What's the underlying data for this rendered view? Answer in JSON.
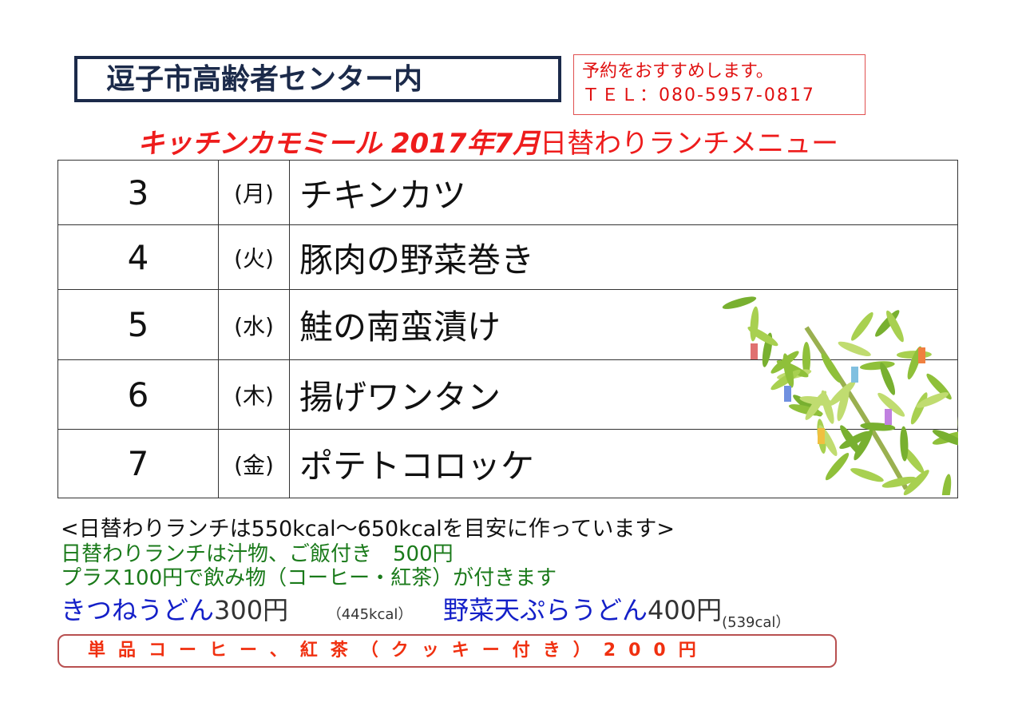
{
  "location": "逗子市高齢者センター内",
  "reservation": {
    "note": "予約をおすすめします。",
    "tel": "ＴＥＬ：080-5957-0817"
  },
  "title": {
    "shop": "キッチンカモミール 2017年7月",
    "menu": "日替わりランチメニュー"
  },
  "menu": [
    {
      "day": "3",
      "weekday": "(月)",
      "dish": "チキンカツ"
    },
    {
      "day": "4",
      "weekday": "(火)",
      "dish": "豚肉の野菜巻き"
    },
    {
      "day": "5",
      "weekday": "(水)",
      "dish": "鮭の南蛮漬け"
    },
    {
      "day": "6",
      "weekday": "(木)",
      "dish": "揚げワンタン"
    },
    {
      "day": "7",
      "weekday": "(金)",
      "dish": "ポテトコロッケ"
    }
  ],
  "notes": {
    "calorie": "<日替わりランチは550kcal～650kcalを目安に作っています>",
    "set": "日替わりランチは汁物、ご飯付き　500円",
    "drink": "プラス100円で飲み物（コーヒー・紅茶）が付きます",
    "kitsune": {
      "name": "きつねうどん",
      "price": "300円",
      "cal": "（445kcal）"
    },
    "yasai": {
      "name": "野菜天ぷらうどん",
      "price": "400円",
      "cal": "(539cal）"
    }
  },
  "single": "単品コーヒー、紅茶（クッキー付き）200円",
  "colors": {
    "red": "#ee1c1c",
    "navy": "#1b2a4a",
    "green": "#1a7a1a",
    "blue": "#1420c8"
  },
  "decoration": "tanabata-bamboo"
}
